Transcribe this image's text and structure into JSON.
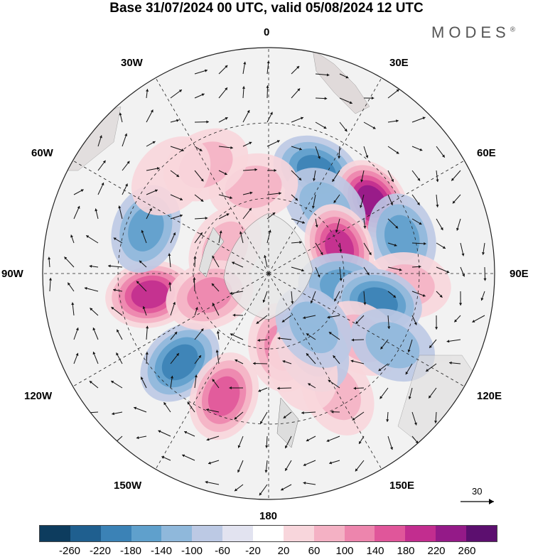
{
  "title": "Base 31/07/2024 00 UTC, valid 05/08/2024 12 UTC",
  "brand": "MODES",
  "brand_mark": "®",
  "longitude_labels": {
    "top": "0",
    "top_left": "30W",
    "top_right": "30E",
    "upper_left": "60W",
    "upper_right": "60E",
    "left": "90W",
    "right": "90E",
    "lower_left": "120W",
    "lower_right": "120E",
    "bottom_left": "150W",
    "bottom_right": "150E",
    "bottom": "180"
  },
  "reference_vector": {
    "label": "30"
  },
  "colorbar": {
    "colors": [
      "#0d3c5e",
      "#1f5f8f",
      "#3b82b6",
      "#5fa0cc",
      "#8fb8db",
      "#bcc9e4",
      "#e2e3f0",
      "#ffffff",
      "#f8d6dc",
      "#f4b1c4",
      "#ed85ad",
      "#e0569a",
      "#c22d8f",
      "#941a88",
      "#5c0f6f"
    ],
    "tick_labels": [
      "-260",
      "-220",
      "-180",
      "-140",
      "-100",
      "-60",
      "-20",
      "20",
      "60",
      "100",
      "140",
      "180",
      "220",
      "260"
    ]
  },
  "anomaly_blobs": [
    {
      "lat_lon": [
        -45,
        25
      ],
      "value": -180
    },
    {
      "lat_lon": [
        -40,
        55
      ],
      "value": 240
    },
    {
      "lat_lon": [
        -35,
        75
      ],
      "value": -140
    },
    {
      "lat_lon": [
        -55,
        40
      ],
      "value": -100
    },
    {
      "lat_lon": [
        -42,
        -100
      ],
      "value": 220
    },
    {
      "lat_lon": [
        -38,
        -70
      ],
      "value": -120
    },
    {
      "lat_lon": [
        -40,
        -135
      ],
      "value": -160
    },
    {
      "lat_lon": [
        -38,
        -160
      ],
      "value": 160
    },
    {
      "lat_lon": [
        -55,
        -10
      ],
      "value": 100
    },
    {
      "lat_lon": [
        -60,
        70
      ],
      "value": 200
    },
    {
      "lat_lon": [
        -35,
        95
      ],
      "value": 100
    },
    {
      "lat_lon": [
        -60,
        100
      ],
      "value": -140
    },
    {
      "lat_lon": [
        -45,
        105
      ],
      "value": -160
    },
    {
      "lat_lon": [
        -70,
        -60
      ],
      "value": 80
    },
    {
      "lat_lon": [
        -65,
        -110
      ],
      "value": 120
    },
    {
      "lat_lon": [
        -60,
        170
      ],
      "value": 140
    },
    {
      "lat_lon": [
        -45,
        125
      ],
      "value": 80
    },
    {
      "lat_lon": [
        -35,
        150
      ],
      "value": 100
    },
    {
      "lat_lon": [
        -55,
        150
      ],
      "value": -100
    },
    {
      "lat_lon": [
        -40,
        -30
      ],
      "value": 80
    },
    {
      "lat_lon": [
        -50,
        160
      ],
      "value": 60
    },
    {
      "lat_lon": [
        -62,
        140
      ],
      "value": -100
    },
    {
      "lat_lon": [
        -35,
        -45
      ],
      "value": 60
    },
    {
      "lat_lon": [
        -33,
        120
      ],
      "value": -80
    }
  ]
}
